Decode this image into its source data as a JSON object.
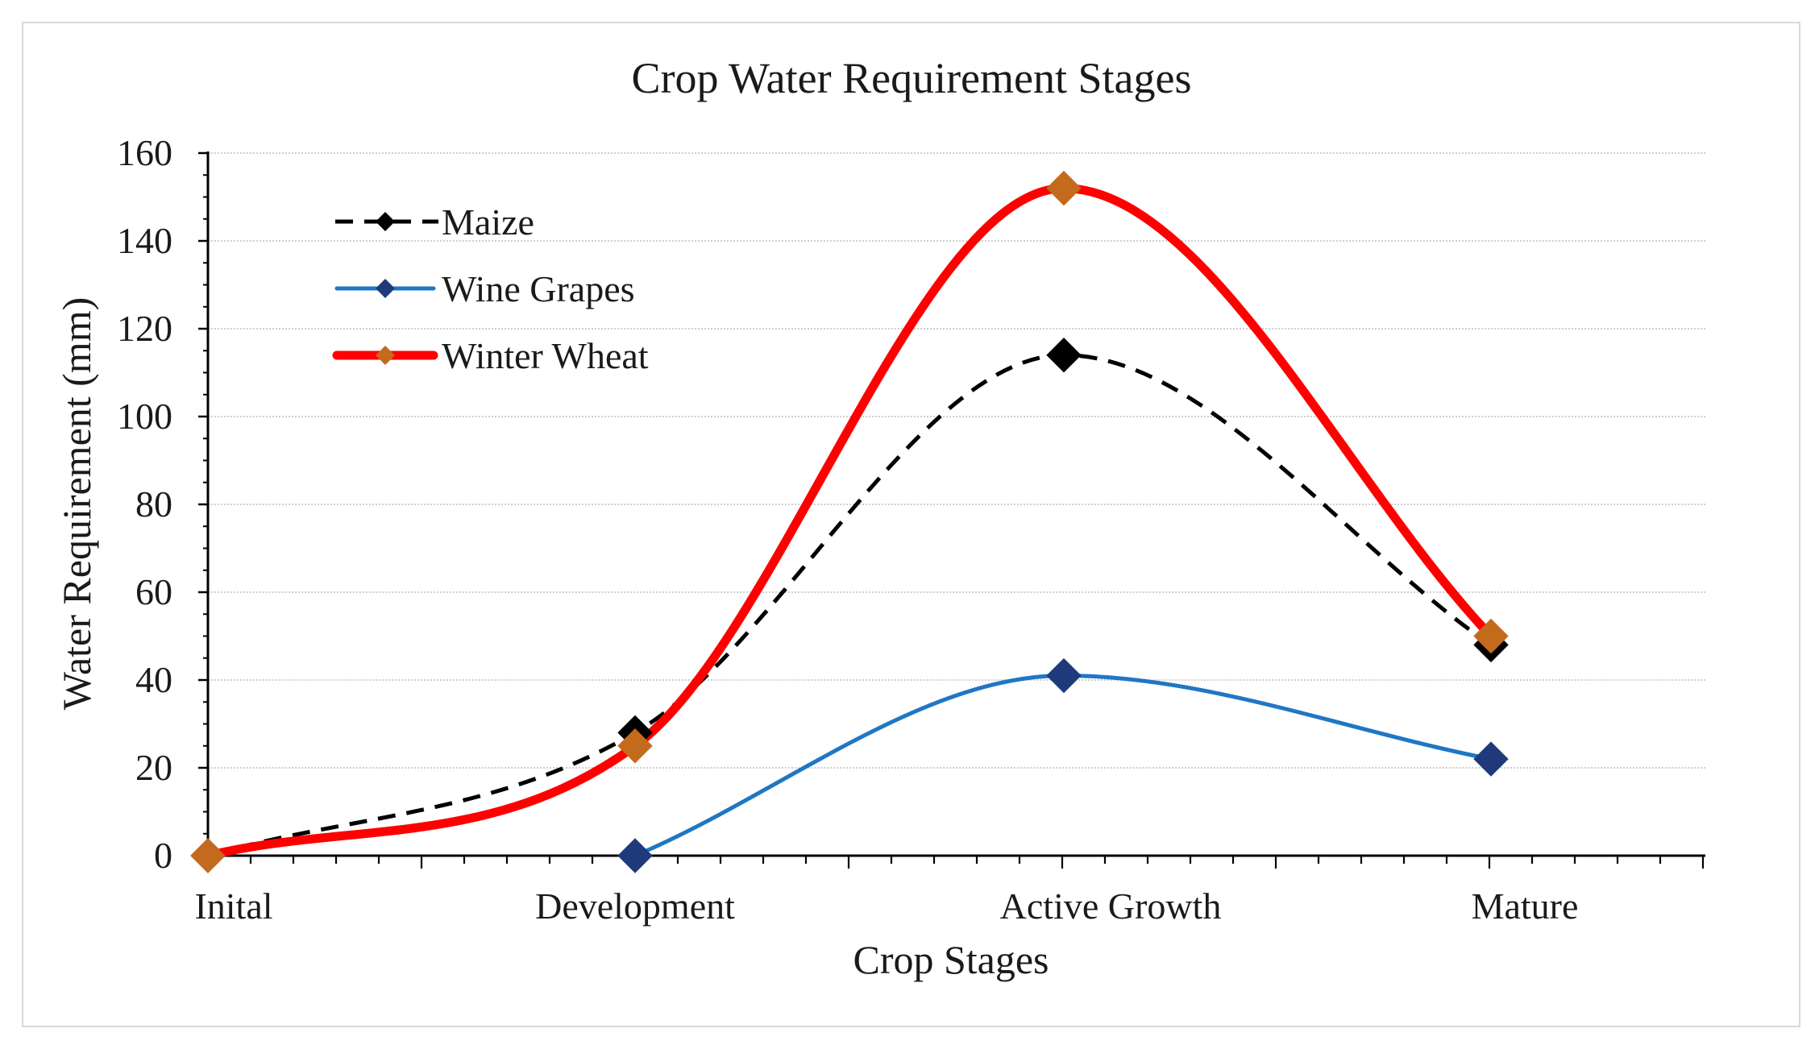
{
  "chart_data": {
    "type": "line",
    "title": "Crop Water Requirement Stages",
    "xlabel": "Crop Stages",
    "ylabel": "Water Requirement (mm)",
    "categories": [
      "Inital",
      "Development",
      "Active Growth",
      "Mature"
    ],
    "ylim": [
      0,
      160
    ],
    "yticks": [
      0,
      20,
      40,
      60,
      80,
      100,
      120,
      140,
      160
    ],
    "grid": true,
    "legend_position": "top-left",
    "series": [
      {
        "name": "Maize",
        "values": [
          0,
          28,
          114,
          48
        ],
        "color": "#000000",
        "marker_color": "#000000",
        "line_style": "dashed"
      },
      {
        "name": "Wine Grapes",
        "values": [
          null,
          0,
          41,
          22
        ],
        "color": "#1f77c4",
        "marker_color": "#1f3a7a",
        "line_style": "solid"
      },
      {
        "name": "Winter Wheat",
        "values": [
          0,
          25,
          152,
          50
        ],
        "color": "#ff0000",
        "marker_color": "#c46a1c",
        "line_style": "thick"
      }
    ]
  }
}
